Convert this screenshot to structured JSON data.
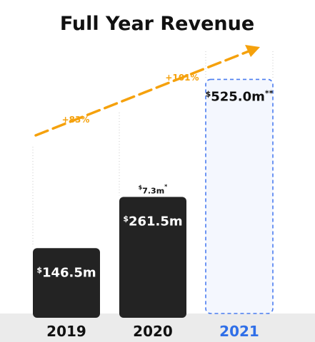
{
  "colors": {
    "bar": "#232323",
    "projected_fill": "#f4f7fe",
    "projected_border": "#4a7cf0",
    "projected_label": "#2f6fe8",
    "arrow": "#f5a10c",
    "baseline": "#ebebeb"
  },
  "chart_data": {
    "type": "bar",
    "title": "Full Year Revenue",
    "categories": [
      "2019",
      "2020",
      "2021"
    ],
    "values": [
      146.5,
      261.5,
      525.0
    ],
    "value_labels": [
      {
        "prefix": "$",
        "text": "146.5m",
        "suffix": ""
      },
      {
        "prefix": "$",
        "text": "261.5m",
        "suffix": ""
      },
      {
        "prefix": "$",
        "text": "525.0m",
        "suffix": "**"
      }
    ],
    "projected": [
      false,
      false,
      true
    ],
    "annotations": {
      "extra_2020": {
        "prefix": "$",
        "text": "7.3m",
        "suffix": "*"
      },
      "growth": [
        "+83%",
        "+101%"
      ]
    },
    "ylim": [
      0,
      540
    ],
    "grid": false,
    "legend": "none"
  }
}
